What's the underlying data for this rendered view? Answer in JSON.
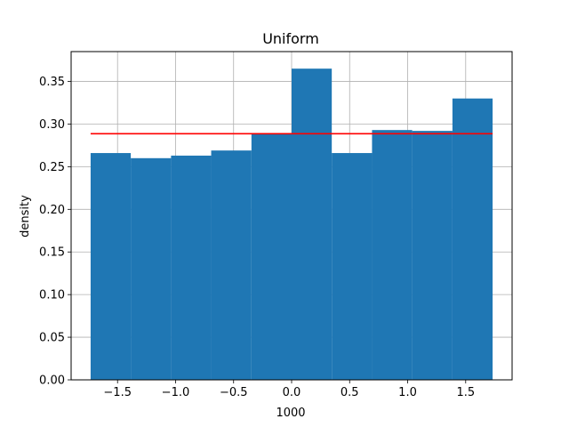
{
  "chart_data": {
    "type": "bar",
    "title": "Uniform",
    "xlabel": "1000",
    "ylabel": "density",
    "xlim": [
      -1.9,
      1.9
    ],
    "ylim": [
      0,
      0.385
    ],
    "grid": true,
    "bar_color": "#1f77b4",
    "bins": [
      {
        "x0": -1.732,
        "x1": -1.386,
        "value": 0.266
      },
      {
        "x0": -1.386,
        "x1": -1.039,
        "value": 0.26
      },
      {
        "x0": -1.039,
        "x1": -0.693,
        "value": 0.263
      },
      {
        "x0": -0.693,
        "x1": -0.346,
        "value": 0.269
      },
      {
        "x0": -0.346,
        "x1": 0.0,
        "value": 0.288
      },
      {
        "x0": 0.0,
        "x1": 0.346,
        "value": 0.365
      },
      {
        "x0": 0.346,
        "x1": 0.693,
        "value": 0.266
      },
      {
        "x0": 0.693,
        "x1": 1.039,
        "value": 0.293
      },
      {
        "x0": 1.039,
        "x1": 1.386,
        "value": 0.292
      },
      {
        "x0": 1.386,
        "x1": 1.732,
        "value": 0.33
      }
    ],
    "reference_line": {
      "x0": -1.732,
      "x1": 1.732,
      "y": 0.2887,
      "color": "#ff0000"
    },
    "x_ticks": [
      {
        "value": -1.5,
        "label": "−1.5"
      },
      {
        "value": -1.0,
        "label": "−1.0"
      },
      {
        "value": -0.5,
        "label": "−0.5"
      },
      {
        "value": 0.0,
        "label": "0.0"
      },
      {
        "value": 0.5,
        "label": "0.5"
      },
      {
        "value": 1.0,
        "label": "1.0"
      },
      {
        "value": 1.5,
        "label": "1.5"
      }
    ],
    "y_ticks": [
      {
        "value": 0.0,
        "label": "0.00"
      },
      {
        "value": 0.05,
        "label": "0.05"
      },
      {
        "value": 0.1,
        "label": "0.10"
      },
      {
        "value": 0.15,
        "label": "0.15"
      },
      {
        "value": 0.2,
        "label": "0.20"
      },
      {
        "value": 0.25,
        "label": "0.25"
      },
      {
        "value": 0.3,
        "label": "0.30"
      },
      {
        "value": 0.35,
        "label": "0.35"
      }
    ]
  }
}
